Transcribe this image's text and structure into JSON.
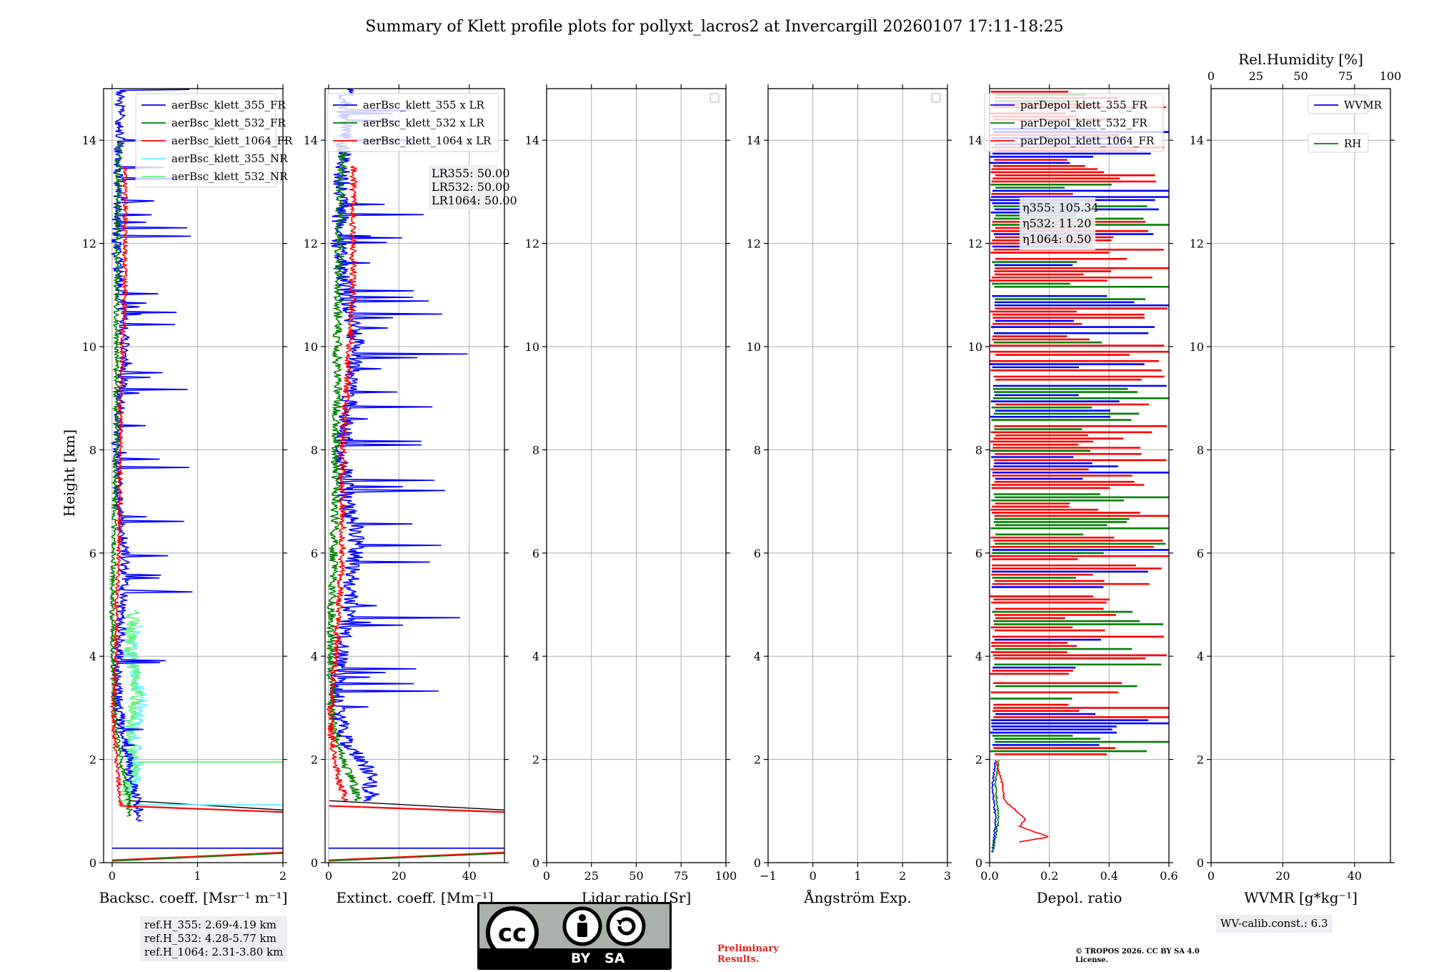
{
  "title": "Summary of Klett profile plots for pollyxt_lacros2 at Invercargill 20260107 17:11-18:25",
  "ylabel": "Height [km]",
  "colors": {
    "c355": "#0000ff",
    "c532": "#008000",
    "c1064": "#ff0000",
    "c355nr": "#6ff0ff",
    "c532nr": "#62f27a"
  },
  "panels": [
    {
      "xlabel": "Backsc. coeff. [Msr⁻¹ m⁻¹]",
      "xticks": [
        "0",
        "1",
        "2"
      ],
      "legend": [
        "aerBsc_klett_355_FR",
        "aerBsc_klett_532_FR",
        "aerBsc_klett_1064_FR",
        "aerBsc_klett_355_NR",
        "aerBsc_klett_532_NR"
      ]
    },
    {
      "xlabel": "Extinct. coeff. [Mm⁻¹]",
      "xticks": [
        "0",
        "20",
        "40"
      ],
      "legend": [
        "aerBsc_klett_355 x LR",
        "aerBsc_klett_532 x LR",
        "aerBsc_klett_1064 x LR"
      ],
      "lr_box": [
        "LR355: 50.00",
        "LR532: 50.00",
        "LR1064: 50.00"
      ]
    },
    {
      "xlabel": "Lidar ratio [Sr]",
      "xticks": [
        "0",
        "25",
        "50",
        "75",
        "100"
      ]
    },
    {
      "xlabel": "Ångström Exp.",
      "xticks": [
        "−1",
        "0",
        "1",
        "2",
        "3"
      ]
    },
    {
      "xlabel": "Depol. ratio",
      "xticks": [
        "0.0",
        "0.2",
        "0.4",
        "0.6"
      ],
      "legend": [
        "parDepol_klett_355_FR",
        "parDepol_klett_532_FR",
        "parDepol_klett_1064_FR"
      ],
      "eta_box": [
        "η355: 105.34",
        "η532: 11.20",
        "η1064: 0.50"
      ]
    },
    {
      "xlabel": "WVMR [g*kg⁻¹]",
      "xticks": [
        "0",
        "20",
        "40"
      ],
      "top_label": "Rel.Humidity [%]",
      "top_ticks": [
        "0",
        "25",
        "50",
        "75",
        "100"
      ],
      "legend": [
        "WVMR",
        "RH"
      ]
    }
  ],
  "yticks": [
    "0",
    "2",
    "4",
    "6",
    "8",
    "10",
    "12",
    "14"
  ],
  "ref_box": [
    "ref.H_355: 2.69-4.19 km",
    "ref.H_532: 4.28-5.77 km",
    "ref.H_1064: 2.31-3.80 km"
  ],
  "wv_calib": "WV-calib.const.: 6.3",
  "cc_label": "BY   SA",
  "preliminary": "Preliminary Results.",
  "copyright": "© TROPOS 2026. CC BY SA 4.0 License.",
  "chart_data": [
    {
      "type": "line",
      "title": "",
      "xlabel": "Backsc. coeff. [Msr⁻¹ m⁻¹]",
      "ylabel": "Height [km]",
      "xlim": [
        -0.1,
        2.0
      ],
      "ylim": [
        0,
        15
      ],
      "grid": true,
      "legend_position": "upper-right",
      "series": [
        {
          "name": "aerBsc_klett_355_FR",
          "color": "#0000ff",
          "x": [
            0.3,
            0.3,
            0.22,
            0.2,
            0.12,
            0.05,
            0.1,
            0.15,
            0.08,
            0.05,
            0.1,
            0.15,
            0.1,
            0.05,
            0.08,
            0.1
          ],
          "y": [
            0.8,
            1.2,
            1.6,
            2.0,
            2.5,
            3.5,
            4.5,
            6.0,
            7.0,
            8.0,
            9.0,
            10.0,
            11.0,
            12.0,
            13.5,
            15.0
          ]
        },
        {
          "name": "aerBsc_klett_532_FR",
          "color": "#008000",
          "x": [
            0.2,
            0.2,
            0.15,
            0.1,
            0.05,
            0.02,
            0.0,
            0.02,
            0.03,
            0.05,
            0.05,
            0.05,
            0.05,
            0.06,
            0.08
          ],
          "y": [
            0.9,
            1.2,
            1.6,
            2.0,
            2.5,
            3.5,
            5.0,
            6.0,
            7.0,
            8.0,
            9.0,
            10.0,
            11.0,
            12.0,
            14.0
          ]
        },
        {
          "name": "aerBsc_klett_1064_FR",
          "color": "#ff0000",
          "x": [
            0.1,
            0.08,
            0.05,
            0.02,
            0.01,
            0.05,
            0.05,
            0.08,
            0.1,
            0.1,
            0.12,
            0.15,
            0.15,
            0.15
          ],
          "y": [
            1.1,
            1.5,
            2.0,
            2.5,
            3.0,
            4.0,
            5.0,
            6.0,
            8.0,
            9.0,
            10.0,
            11.0,
            12.0,
            13.5
          ]
        },
        {
          "name": "aerBsc_klett_355_NR",
          "color": "#6ff0ff",
          "x": [
            0.2,
            0.3,
            0.25,
            0.35,
            0.2,
            0.3
          ],
          "y": [
            1.3,
            1.8,
            2.6,
            3.2,
            4.0,
            4.6
          ]
        },
        {
          "name": "aerBsc_klett_532_NR",
          "color": "#62f27a",
          "x": [
            0.15,
            0.25,
            0.2,
            0.3,
            0.2,
            0.25
          ],
          "y": [
            1.2,
            1.8,
            2.6,
            3.4,
            4.2,
            4.9
          ]
        }
      ]
    },
    {
      "type": "line",
      "xlabel": "Extinct. coeff. [Mm⁻¹]",
      "ylabel": "Height [km]",
      "xlim": [
        -1,
        50
      ],
      "ylim": [
        0,
        15
      ],
      "grid": true,
      "legend_position": "upper-right",
      "series": [
        {
          "name": "aerBsc_klett_355 x LR",
          "color": "#0000ff",
          "x": [
            12,
            12,
            10,
            5,
            2,
            3,
            6,
            8,
            5,
            4,
            6,
            8,
            5,
            3,
            4,
            5
          ],
          "y": [
            1.2,
            1.6,
            2.0,
            2.3,
            3.0,
            4.0,
            5.0,
            6.5,
            7.0,
            8.0,
            9.0,
            10.0,
            11.0,
            12.0,
            13.5,
            15.0
          ]
        },
        {
          "name": "aerBsc_klett_532 x LR",
          "color": "#008000",
          "x": [
            8,
            7,
            4,
            2,
            1,
            0.5,
            1,
            1.5,
            2,
            2,
            2.5,
            2.5,
            3,
            4
          ],
          "y": [
            1.2,
            1.6,
            2.0,
            2.5,
            3.0,
            4.0,
            5.0,
            6.0,
            7.0,
            8.0,
            9.0,
            10.0,
            12.0,
            14.0
          ]
        },
        {
          "name": "aerBsc_klett_1064 x LR",
          "color": "#ff0000",
          "x": [
            5,
            3,
            1,
            0.5,
            2,
            3,
            4,
            4,
            5,
            6,
            7,
            7,
            7
          ],
          "y": [
            1.2,
            1.6,
            2.2,
            3.0,
            4.0,
            5.0,
            6.0,
            8.0,
            9.0,
            10.0,
            11.0,
            12.0,
            13.5
          ]
        }
      ]
    },
    {
      "type": "line",
      "xlabel": "Lidar ratio [Sr]",
      "xlim": [
        0,
        100
      ],
      "ylim": [
        0,
        15
      ],
      "grid": true,
      "series": []
    },
    {
      "type": "line",
      "xlabel": "Ångström Exp.",
      "xlim": [
        -1,
        3
      ],
      "ylim": [
        0,
        15
      ],
      "grid": true,
      "series": []
    },
    {
      "type": "line",
      "xlabel": "Depol. ratio",
      "xlim": [
        0,
        0.6
      ],
      "ylim": [
        0,
        15
      ],
      "grid": true,
      "legend_position": "upper-right",
      "series": [
        {
          "name": "parDepol_klett_355_FR",
          "color": "#0000ff",
          "x": [
            0.01,
            0.02,
            0.01,
            0.02
          ],
          "y": [
            0.2,
            0.8,
            1.5,
            2.0
          ]
        },
        {
          "name": "parDepol_klett_532_FR",
          "color": "#008000",
          "x": [
            0.01,
            0.03,
            0.02,
            0.03
          ],
          "y": [
            0.2,
            0.8,
            1.5,
            2.0
          ]
        },
        {
          "name": "parDepol_klett_1064_FR",
          "color": "#ff0000",
          "x": [
            0.1,
            0.2,
            0.1,
            0.12,
            0.05,
            0.04,
            0.02
          ],
          "y": [
            0.4,
            0.5,
            0.7,
            0.85,
            1.2,
            1.6,
            2.0
          ]
        }
      ]
    },
    {
      "type": "line",
      "xlabel": "WVMR [g*kg⁻¹]",
      "xlim": [
        0,
        50
      ],
      "ylim": [
        0,
        15
      ],
      "grid": true,
      "secondary_xlabel": "Rel.Humidity [%]",
      "secondary_xlim": [
        0,
        100
      ],
      "legend_position": "upper-right",
      "series": [
        {
          "name": "WVMR",
          "color": "#0000ff",
          "x": [],
          "y": []
        },
        {
          "name": "RH",
          "color": "#008000",
          "x": [],
          "y": []
        }
      ]
    }
  ]
}
